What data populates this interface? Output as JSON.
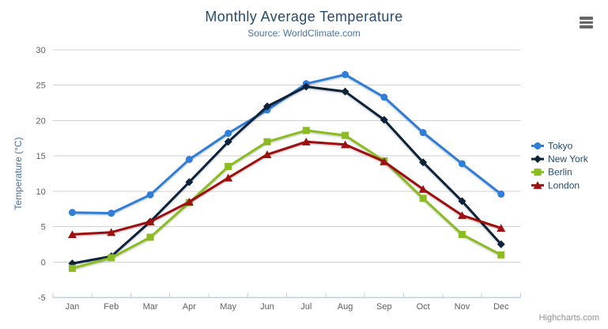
{
  "chart": {
    "title": "Monthly Average Temperature",
    "subtitle": "Source: WorldClimate.com",
    "credits": "Highcharts.com",
    "icons": {
      "context_menu": "hamburger-icon"
    }
  },
  "chart_data": {
    "type": "line",
    "title": "Monthly Average Temperature",
    "subtitle": "Source: WorldClimate.com",
    "categories": [
      "Jan",
      "Feb",
      "Mar",
      "Apr",
      "May",
      "Jun",
      "Jul",
      "Aug",
      "Sep",
      "Oct",
      "Nov",
      "Dec"
    ],
    "xlabel": "",
    "ylabel": "Temperature (°C)",
    "ylim": [
      -5,
      30
    ],
    "ytick_step": 5,
    "yticks": [
      -5,
      0,
      5,
      10,
      15,
      20,
      25,
      30
    ],
    "grid": true,
    "legend_position": "right",
    "series": [
      {
        "name": "Tokyo",
        "color": "#2f7ed8",
        "marker": "circle",
        "values": [
          7.0,
          6.9,
          9.5,
          14.5,
          18.2,
          21.5,
          25.2,
          26.5,
          23.3,
          18.3,
          13.9,
          9.6
        ]
      },
      {
        "name": "New York",
        "color": "#0d233a",
        "marker": "diamond",
        "values": [
          -0.2,
          0.8,
          5.7,
          11.3,
          17.0,
          22.0,
          24.8,
          24.1,
          20.1,
          14.1,
          8.6,
          2.5
        ]
      },
      {
        "name": "Berlin",
        "color": "#8bbc21",
        "marker": "square",
        "values": [
          -0.9,
          0.6,
          3.5,
          8.4,
          13.5,
          17.0,
          18.6,
          17.9,
          14.3,
          9.0,
          3.9,
          1.0
        ]
      },
      {
        "name": "London",
        "color": "#9e1111",
        "marker": "triangle",
        "values": [
          3.9,
          4.2,
          5.7,
          8.5,
          11.9,
          15.2,
          17.0,
          16.6,
          14.2,
          10.3,
          6.6,
          4.8
        ]
      }
    ],
    "style": {
      "grid_color": "#d0d0d0",
      "axis_line_color": "#c0d0e0",
      "tick_color": "#c0d0e0",
      "tick_label_color": "#606060",
      "axis_title_color": "#4572a7",
      "title_color": "#274b6d",
      "subtitle_color": "#4d759e",
      "legend_text_color": "#274b6d",
      "credits_color": "#909090",
      "menu_icon_color": "#666666",
      "background_color": "#ffffff"
    }
  }
}
